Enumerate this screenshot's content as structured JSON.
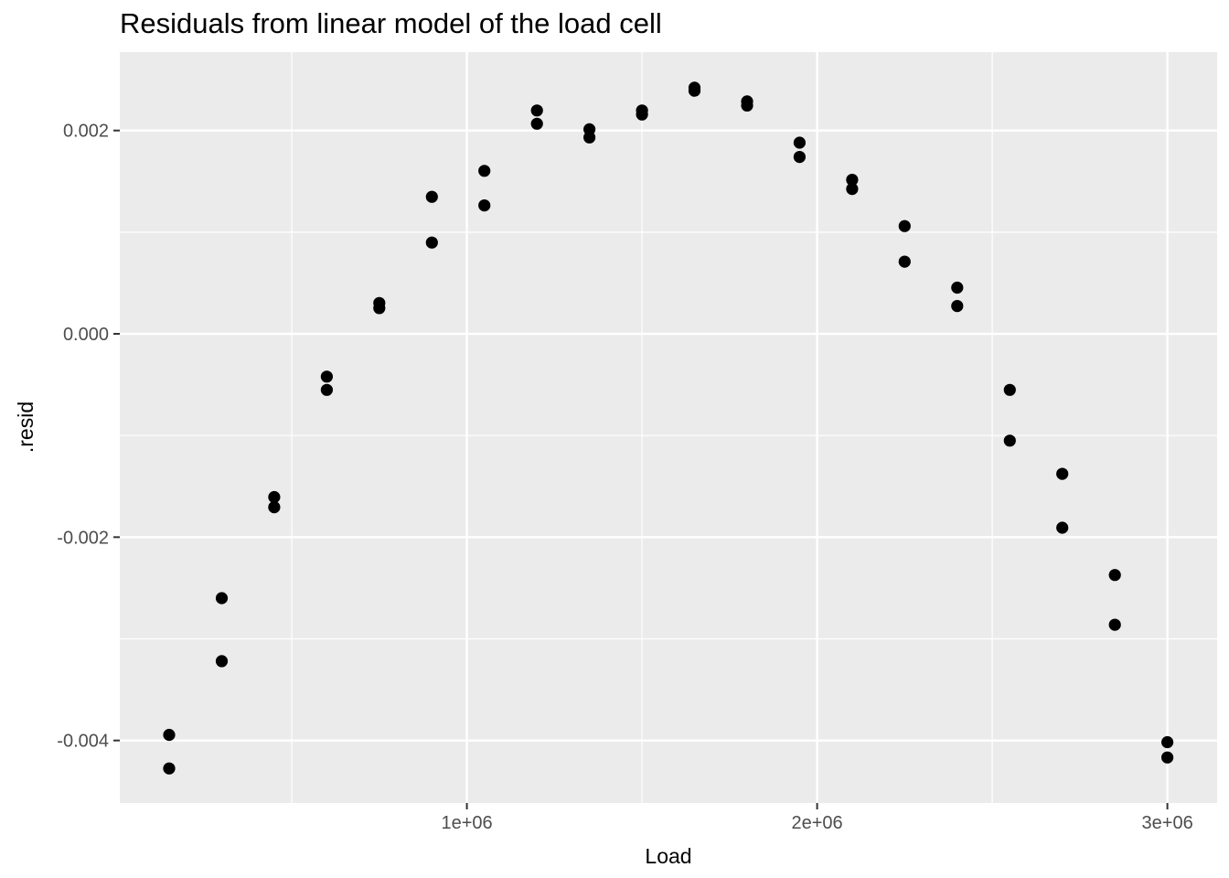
{
  "chart_data": {
    "type": "scatter",
    "title": "Residuals from linear model of the load cell",
    "xlabel": "Load",
    "ylabel": ".resid",
    "xlim": [
      9000,
      3142000
    ],
    "ylim": [
      -0.004615,
      0.002771
    ],
    "grid": true,
    "legend": "none",
    "x_major_ticks": [
      {
        "value": 1000000,
        "label": "1e+06"
      },
      {
        "value": 2000000,
        "label": "2e+06"
      },
      {
        "value": 3000000,
        "label": "3e+06"
      }
    ],
    "x_minor_ticks": [
      500000,
      1500000,
      2500000
    ],
    "y_major_ticks": [
      {
        "value": 0.002,
        "label": "0.002"
      },
      {
        "value": 0.0,
        "label": "0.000"
      },
      {
        "value": -0.002,
        "label": "-0.002"
      },
      {
        "value": -0.004,
        "label": "-0.004"
      }
    ],
    "y_minor_ticks": [
      0.001,
      -0.001,
      -0.003
    ],
    "points": [
      [
        150000,
        -0.004275
      ],
      [
        150000,
        -0.003945
      ],
      [
        300000,
        -0.00322
      ],
      [
        300000,
        -0.0026
      ],
      [
        450000,
        -0.001606
      ],
      [
        450000,
        -0.001706
      ],
      [
        600000,
        -0.000421
      ],
      [
        600000,
        -0.000551
      ],
      [
        750000,
        0.000303
      ],
      [
        750000,
        0.000253
      ],
      [
        900000,
        0.000898
      ],
      [
        900000,
        0.001348
      ],
      [
        1050000,
        0.001263
      ],
      [
        1050000,
        0.001603
      ],
      [
        1200000,
        0.002197
      ],
      [
        1200000,
        0.002067
      ],
      [
        1350000,
        0.001932
      ],
      [
        1350000,
        0.002012
      ],
      [
        1500000,
        0.002157
      ],
      [
        1500000,
        0.002197
      ],
      [
        1650000,
        0.002391
      ],
      [
        1650000,
        0.002421
      ],
      [
        1800000,
        0.002286
      ],
      [
        1800000,
        0.002246
      ],
      [
        1950000,
        0.00174
      ],
      [
        1950000,
        0.00188
      ],
      [
        2100000,
        0.001425
      ],
      [
        2100000,
        0.001515
      ],
      [
        2250000,
        0.00106
      ],
      [
        2250000,
        0.00071
      ],
      [
        2400000,
        0.000274
      ],
      [
        2400000,
        0.000454
      ],
      [
        2550000,
        -0.001051
      ],
      [
        2550000,
        -0.000551
      ],
      [
        2700000,
        -0.001907
      ],
      [
        2700000,
        -0.001377
      ],
      [
        2850000,
        -0.002862
      ],
      [
        2850000,
        -0.002372
      ],
      [
        3000000,
        -0.004017
      ],
      [
        3000000,
        -0.004167
      ]
    ],
    "colors": {
      "point": "#000000",
      "panel_background": "#EBEBEB",
      "gridline": "#FFFFFF",
      "tick_label": "#4D4D4D",
      "tick_mark": "#333333",
      "title": "#000000",
      "axis_title": "#000000",
      "plot_background": "#FFFFFF"
    }
  }
}
